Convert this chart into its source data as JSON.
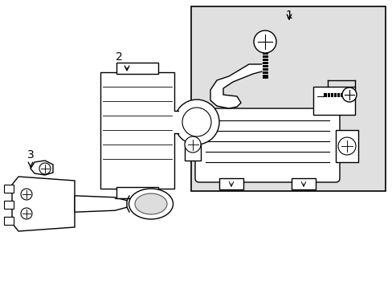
{
  "bg": "#ffffff",
  "lc": "#000000",
  "shade": "#e0e0e0",
  "lw": 1.0,
  "label_fs": 10,
  "fig_w": 4.89,
  "fig_h": 3.6,
  "dpi": 100
}
